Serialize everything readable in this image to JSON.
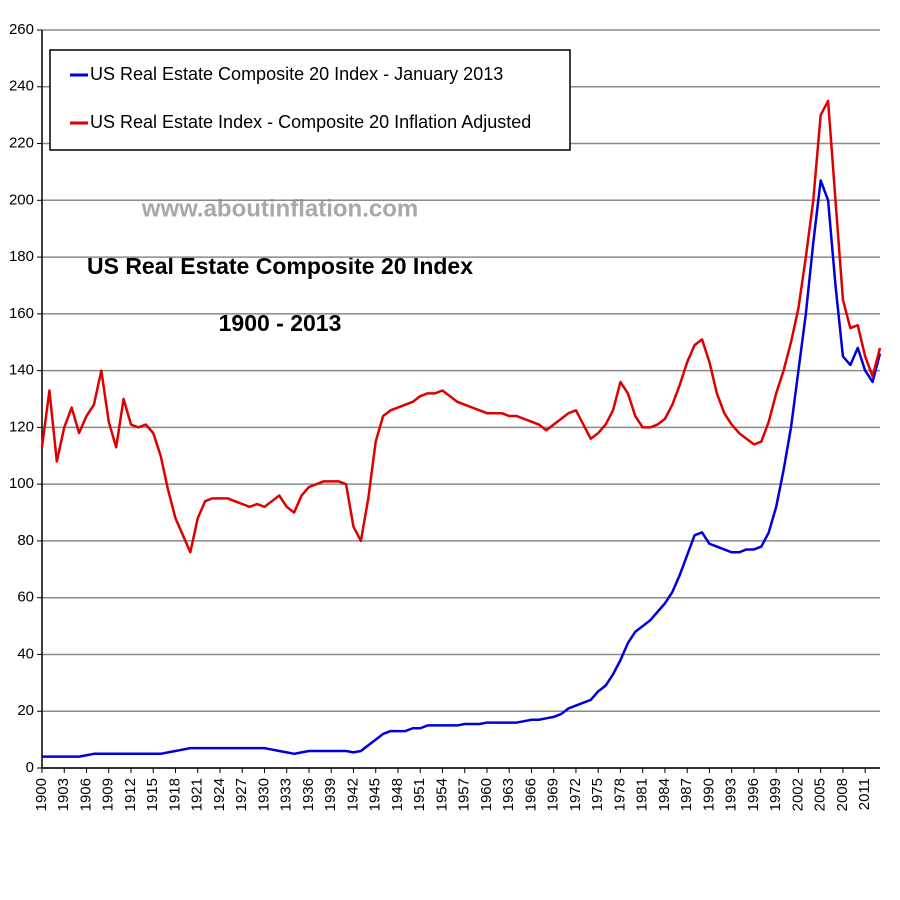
{
  "chart_data": {
    "type": "line",
    "title": "US Real Estate Composite 20 Index",
    "subtitle": "1900 - 2013",
    "watermark": "www.aboutinflation.com",
    "x": [
      1900,
      1901,
      1902,
      1903,
      1904,
      1905,
      1906,
      1907,
      1908,
      1909,
      1910,
      1911,
      1912,
      1913,
      1914,
      1915,
      1916,
      1917,
      1918,
      1919,
      1920,
      1921,
      1922,
      1923,
      1924,
      1925,
      1926,
      1927,
      1928,
      1929,
      1930,
      1931,
      1932,
      1933,
      1934,
      1935,
      1936,
      1937,
      1938,
      1939,
      1940,
      1941,
      1942,
      1943,
      1944,
      1945,
      1946,
      1947,
      1948,
      1949,
      1950,
      1951,
      1952,
      1953,
      1954,
      1955,
      1956,
      1957,
      1958,
      1959,
      1960,
      1961,
      1962,
      1963,
      1964,
      1965,
      1966,
      1967,
      1968,
      1969,
      1970,
      1971,
      1972,
      1973,
      1974,
      1975,
      1976,
      1977,
      1978,
      1979,
      1980,
      1981,
      1982,
      1983,
      1984,
      1985,
      1986,
      1987,
      1988,
      1989,
      1990,
      1991,
      1992,
      1993,
      1994,
      1995,
      1996,
      1997,
      1998,
      1999,
      2000,
      2001,
      2002,
      2003,
      2004,
      2005,
      2006,
      2007,
      2008,
      2009,
      2010,
      2011,
      2012,
      2013
    ],
    "series": [
      {
        "name": "US Real Estate Composite 20 Index - January 2013",
        "color": "#0000dd",
        "values": [
          4,
          4,
          4,
          4,
          4,
          4,
          4.5,
          5,
          5,
          5,
          5,
          5,
          5,
          5,
          5,
          5,
          5,
          5.5,
          6,
          6.5,
          7,
          7,
          7,
          7,
          7,
          7,
          7,
          7,
          7,
          7,
          7,
          6.5,
          6,
          5.5,
          5,
          5.5,
          6,
          6,
          6,
          6,
          6,
          6,
          5.5,
          6,
          8,
          10,
          12,
          13,
          13,
          13,
          14,
          14,
          15,
          15,
          15,
          15,
          15,
          15.5,
          15.5,
          15.5,
          16,
          16,
          16,
          16,
          16,
          16.5,
          17,
          17,
          17.5,
          18,
          19,
          21,
          22,
          23,
          24,
          27,
          29,
          33,
          38,
          44,
          48,
          50,
          52,
          55,
          58,
          62,
          68,
          75,
          82,
          83,
          79,
          78,
          77,
          76,
          76,
          77,
          77,
          78,
          83,
          92,
          105,
          120,
          140,
          160,
          185,
          207,
          200,
          170,
          145,
          142,
          148,
          140,
          136,
          146
        ]
      },
      {
        "name": "US Real Estate Index - Composite 20 Inflation Adjusted",
        "color": "#dd0000",
        "values": [
          113,
          133,
          108,
          120,
          127,
          118,
          124,
          128,
          140,
          122,
          113,
          130,
          121,
          120,
          121,
          118,
          110,
          98,
          88,
          82,
          76,
          88,
          94,
          95,
          95,
          95,
          94,
          93,
          92,
          93,
          92,
          94,
          96,
          92,
          90,
          96,
          99,
          100,
          101,
          101,
          101,
          100,
          85,
          80,
          95,
          115,
          124,
          126,
          127,
          128,
          129,
          131,
          132,
          132,
          133,
          131,
          129,
          128,
          127,
          126,
          125,
          125,
          125,
          124,
          124,
          123,
          122,
          121,
          119,
          121,
          123,
          125,
          126,
          121,
          116,
          118,
          121,
          126,
          136,
          132,
          124,
          120,
          120,
          121,
          123,
          128,
          135,
          143,
          149,
          151,
          143,
          132,
          125,
          121,
          118,
          116,
          114,
          115,
          122,
          132,
          140,
          150,
          162,
          180,
          200,
          230,
          235,
          200,
          165,
          155,
          156,
          145,
          138,
          148
        ]
      }
    ],
    "xlim": [
      1900,
      2013
    ],
    "xticks": [
      1900,
      1903,
      1906,
      1909,
      1912,
      1915,
      1918,
      1921,
      1924,
      1927,
      1930,
      1933,
      1936,
      1939,
      1942,
      1945,
      1948,
      1951,
      1954,
      1957,
      1960,
      1963,
      1966,
      1969,
      1972,
      1975,
      1978,
      1981,
      1984,
      1987,
      1990,
      1993,
      1996,
      1999,
      2002,
      2005,
      2008,
      2011
    ],
    "ylim": [
      0,
      260
    ],
    "yticks": [
      0,
      20,
      40,
      60,
      80,
      100,
      120,
      140,
      160,
      180,
      200,
      220,
      240,
      260
    ],
    "grid": true,
    "legend": "top-left"
  }
}
